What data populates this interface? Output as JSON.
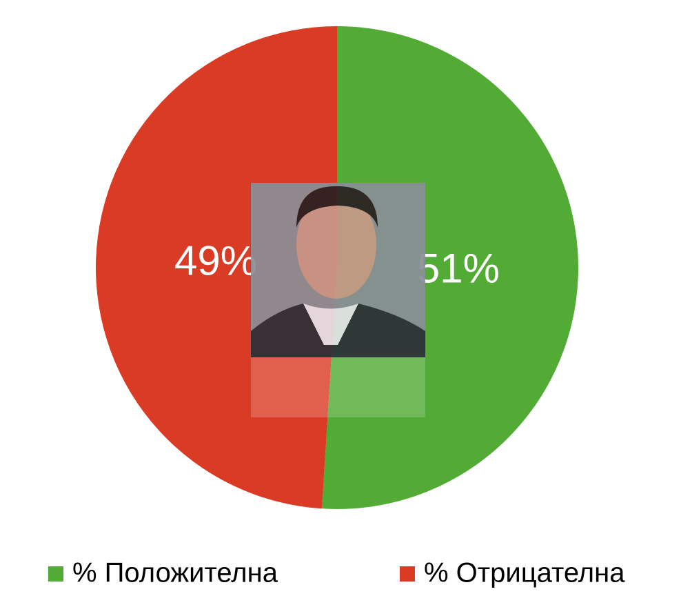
{
  "chart_data": {
    "type": "pie",
    "categories": [
      "% Положителна",
      "% Отрицателна"
    ],
    "values": [
      51,
      49
    ],
    "value_labels": [
      "51%",
      "49%"
    ],
    "colors": [
      "#52ab35",
      "#d93b25"
    ],
    "legend": "bottom"
  }
}
